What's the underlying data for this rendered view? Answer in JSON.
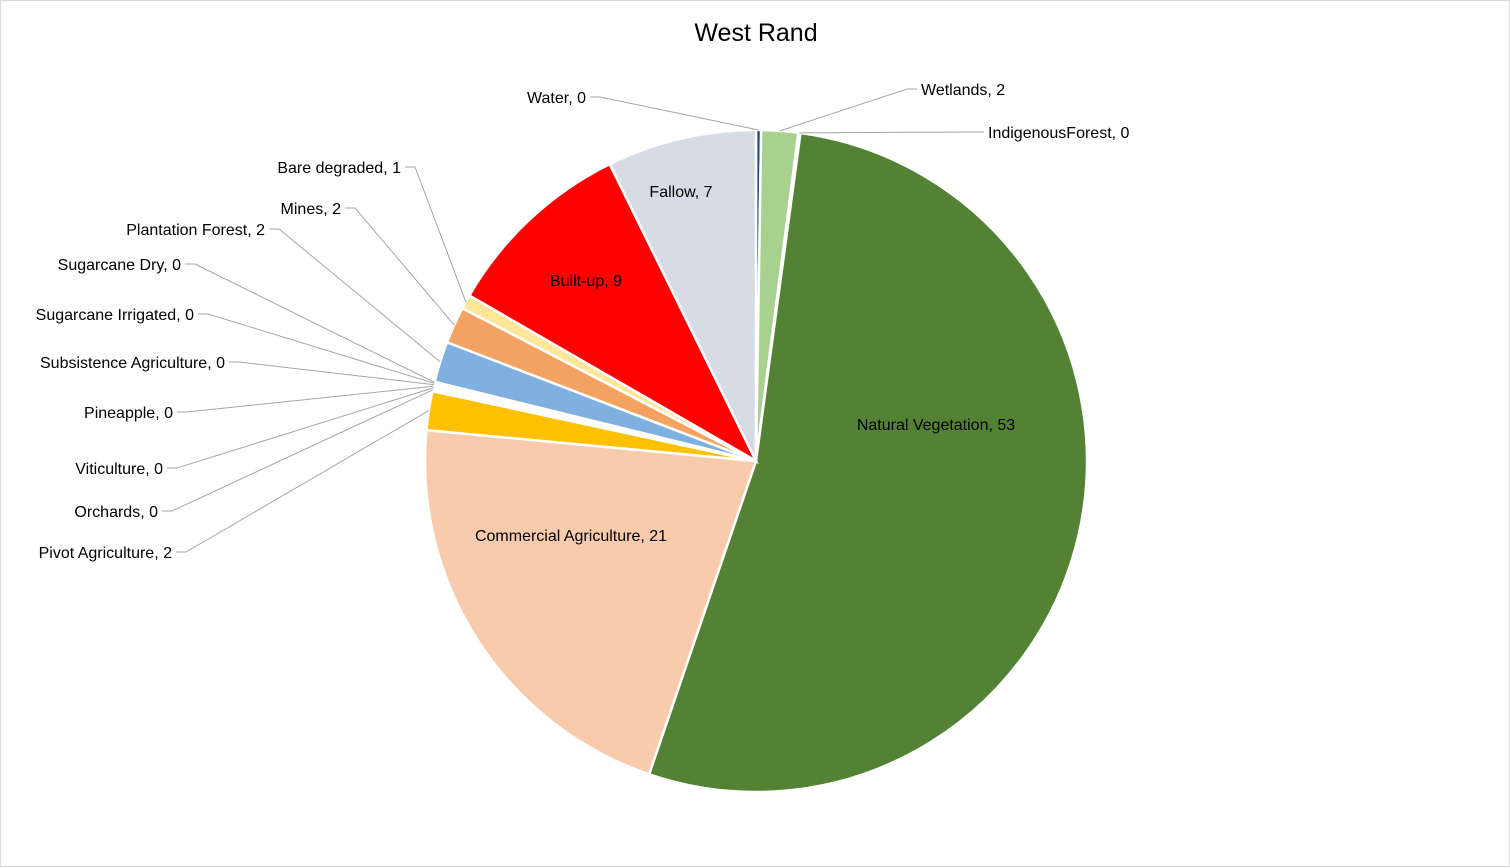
{
  "chart_data": {
    "type": "pie",
    "title": "West Rand",
    "legend": "none",
    "data_labels": "category, value",
    "slices": [
      {
        "name": "Water",
        "value": 0.25,
        "label": "Water, 0",
        "color": "#1F4E79",
        "label_place": "outside-left"
      },
      {
        "name": "Wetlands",
        "value": 1.8,
        "label": "Wetlands, 2",
        "color": "#A9D18E",
        "label_place": "outside-right"
      },
      {
        "name": "IndigenousForest",
        "value": 0.1,
        "label": "IndigenousForest, 0",
        "color": "#375623",
        "label_place": "outside-right"
      },
      {
        "name": "Natural Vegetation",
        "value": 53.2,
        "label": "Natural Vegetation, 53",
        "color": "#548235",
        "label_place": "inside"
      },
      {
        "name": "Commercial Agriculture",
        "value": 21.3,
        "label": "Commercial Agriculture, 21",
        "color": "#F8CBAD",
        "label_place": "inside"
      },
      {
        "name": "Pivot  Agriculture",
        "value": 1.9,
        "label": "Pivot  Agriculture, 2",
        "color": "#FFC000",
        "label_place": "outside-left"
      },
      {
        "name": "Orchards",
        "value": 0.12,
        "label": "Orchards, 0",
        "color": "#4472C4",
        "label_place": "outside-left"
      },
      {
        "name": "Viticulture",
        "value": 0.08,
        "label": "Viticulture, 0",
        "color": "#7030A0",
        "label_place": "outside-left"
      },
      {
        "name": "Pineapple",
        "value": 0.08,
        "label": "Pineapple, 0",
        "color": "#BF9000",
        "label_place": "outside-left"
      },
      {
        "name": "Subsistence Agriculture",
        "value": 0.08,
        "label": "Subsistence Agriculture, 0",
        "color": "#C55A11",
        "label_place": "outside-left"
      },
      {
        "name": "Sugarcane Irrigated",
        "value": 0.05,
        "label": "Sugarcane Irrigated, 0",
        "color": "#264478",
        "label_place": "outside-left"
      },
      {
        "name": "Sugarcane Dry",
        "value": 0.05,
        "label": "Sugarcane Dry, 0",
        "color": "#9E480E",
        "label_place": "outside-left"
      },
      {
        "name": "Plantation Forest",
        "value": 2.0,
        "label": "Plantation Forest, 2",
        "color": "#7FB0E0",
        "label_place": "outside-left"
      },
      {
        "name": "Mines",
        "value": 1.8,
        "label": "Mines, 2",
        "color": "#F4A261",
        "label_place": "outside-left"
      },
      {
        "name": "Bare degraded",
        "value": 0.7,
        "label": "Bare degraded, 1",
        "color": "#FFE699",
        "label_place": "outside-left"
      },
      {
        "name": "Built-up",
        "value": 9.4,
        "label": "Built-up, 9",
        "color": "#FF0000",
        "label_place": "inside"
      },
      {
        "name": "Fallow",
        "value": 7.3,
        "label": "Fallow, 7",
        "color": "#D6DCE5",
        "label_place": "inside"
      }
    ]
  }
}
